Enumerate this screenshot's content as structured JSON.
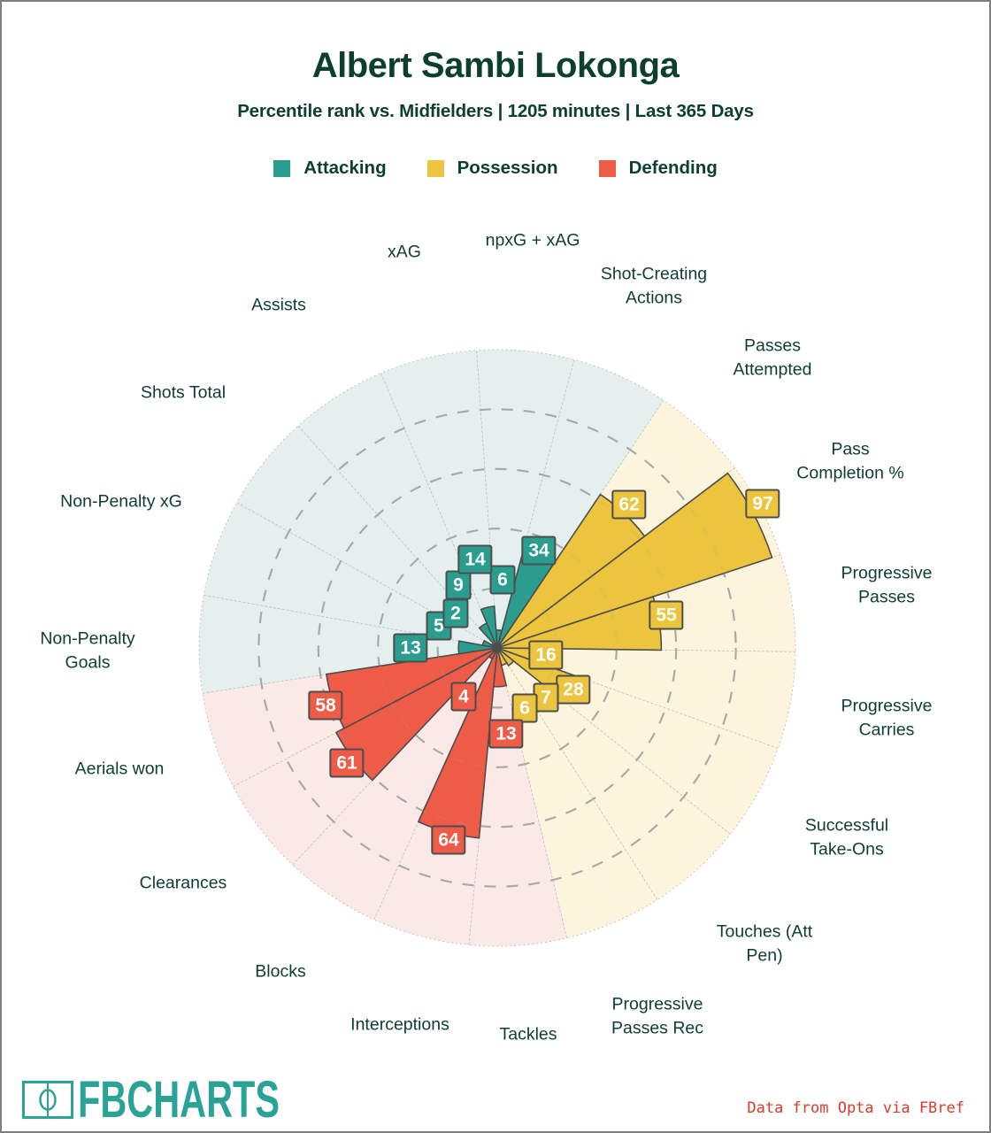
{
  "header": {
    "title": "Albert Sambi Lokonga",
    "subtitle": "Percentile rank vs. Midfielders | 1205 minutes | Last 365 Days"
  },
  "legend": [
    {
      "label": "Attacking",
      "color": "#2a9d8f"
    },
    {
      "label": "Possession",
      "color": "#ecc43d"
    },
    {
      "label": "Defending",
      "color": "#ee5b47"
    }
  ],
  "footer": {
    "brand": "FBCHARTS",
    "brand_color": "#2aa295",
    "credit": "Data from Opta via FBref",
    "credit_color": "#d93a2b"
  },
  "colors": {
    "text_green": "#0c3f2c",
    "ring_gray": "#a9a9a9",
    "wedge_border": "#4d4d4d",
    "bg_separator": "#b9b9b9",
    "frame_border": "#7f7f7f"
  },
  "chart_data": {
    "type": "bar",
    "style": "polar-pizza",
    "unit": "percentile",
    "rlim": [
      0,
      100
    ],
    "rings_dashed_at": [
      20,
      40,
      60,
      80
    ],
    "legend_position": "top",
    "slice_order_clockwise_from_top": [
      "npxG + xAG",
      "Shot-Creating Actions",
      "Passes Attempted",
      "Pass Completion %",
      "Progressive Passes",
      "Progressive Carries",
      "Successful Take-Ons",
      "Touches (Att Pen)",
      "Progressive Passes Rec",
      "Tackles",
      "Interceptions",
      "Blocks",
      "Clearances",
      "Aerials won",
      "Non-Penalty Goals",
      "Non-Penalty xG",
      "Shots Total",
      "Assists",
      "xAG"
    ],
    "groups": [
      {
        "name": "Attacking",
        "color": "#2a9d8f",
        "bg_color": "#e5efee",
        "metrics": [
          {
            "label": "Non-Penalty Goals",
            "value": 13
          },
          {
            "label": "Non-Penalty xG",
            "value": 5
          },
          {
            "label": "Shots Total",
            "value": 2
          },
          {
            "label": "Assists",
            "value": 9
          },
          {
            "label": "xAG",
            "value": 14
          },
          {
            "label": "npxG + xAG",
            "value": 6
          },
          {
            "label": "Shot-Creating Actions",
            "value": 34
          }
        ]
      },
      {
        "name": "Possession",
        "color": "#ecc43d",
        "bg_color": "#fcf4dc",
        "metrics": [
          {
            "label": "Passes Attempted",
            "value": 62
          },
          {
            "label": "Pass Completion %",
            "value": 97
          },
          {
            "label": "Progressive Passes",
            "value": 55
          },
          {
            "label": "Progressive Carries",
            "value": 16
          },
          {
            "label": "Successful Take-Ons",
            "value": 28
          },
          {
            "label": "Touches (Att Pen)",
            "value": 7
          },
          {
            "label": "Progressive Passes Rec",
            "value": 6
          }
        ]
      },
      {
        "name": "Defending",
        "color": "#ee5b47",
        "bg_color": "#fbe9e8",
        "metrics": [
          {
            "label": "Tackles",
            "value": 13
          },
          {
            "label": "Interceptions",
            "value": 64
          },
          {
            "label": "Blocks",
            "value": 4
          },
          {
            "label": "Clearances",
            "value": 61
          },
          {
            "label": "Aerials won",
            "value": 58
          }
        ]
      }
    ]
  }
}
